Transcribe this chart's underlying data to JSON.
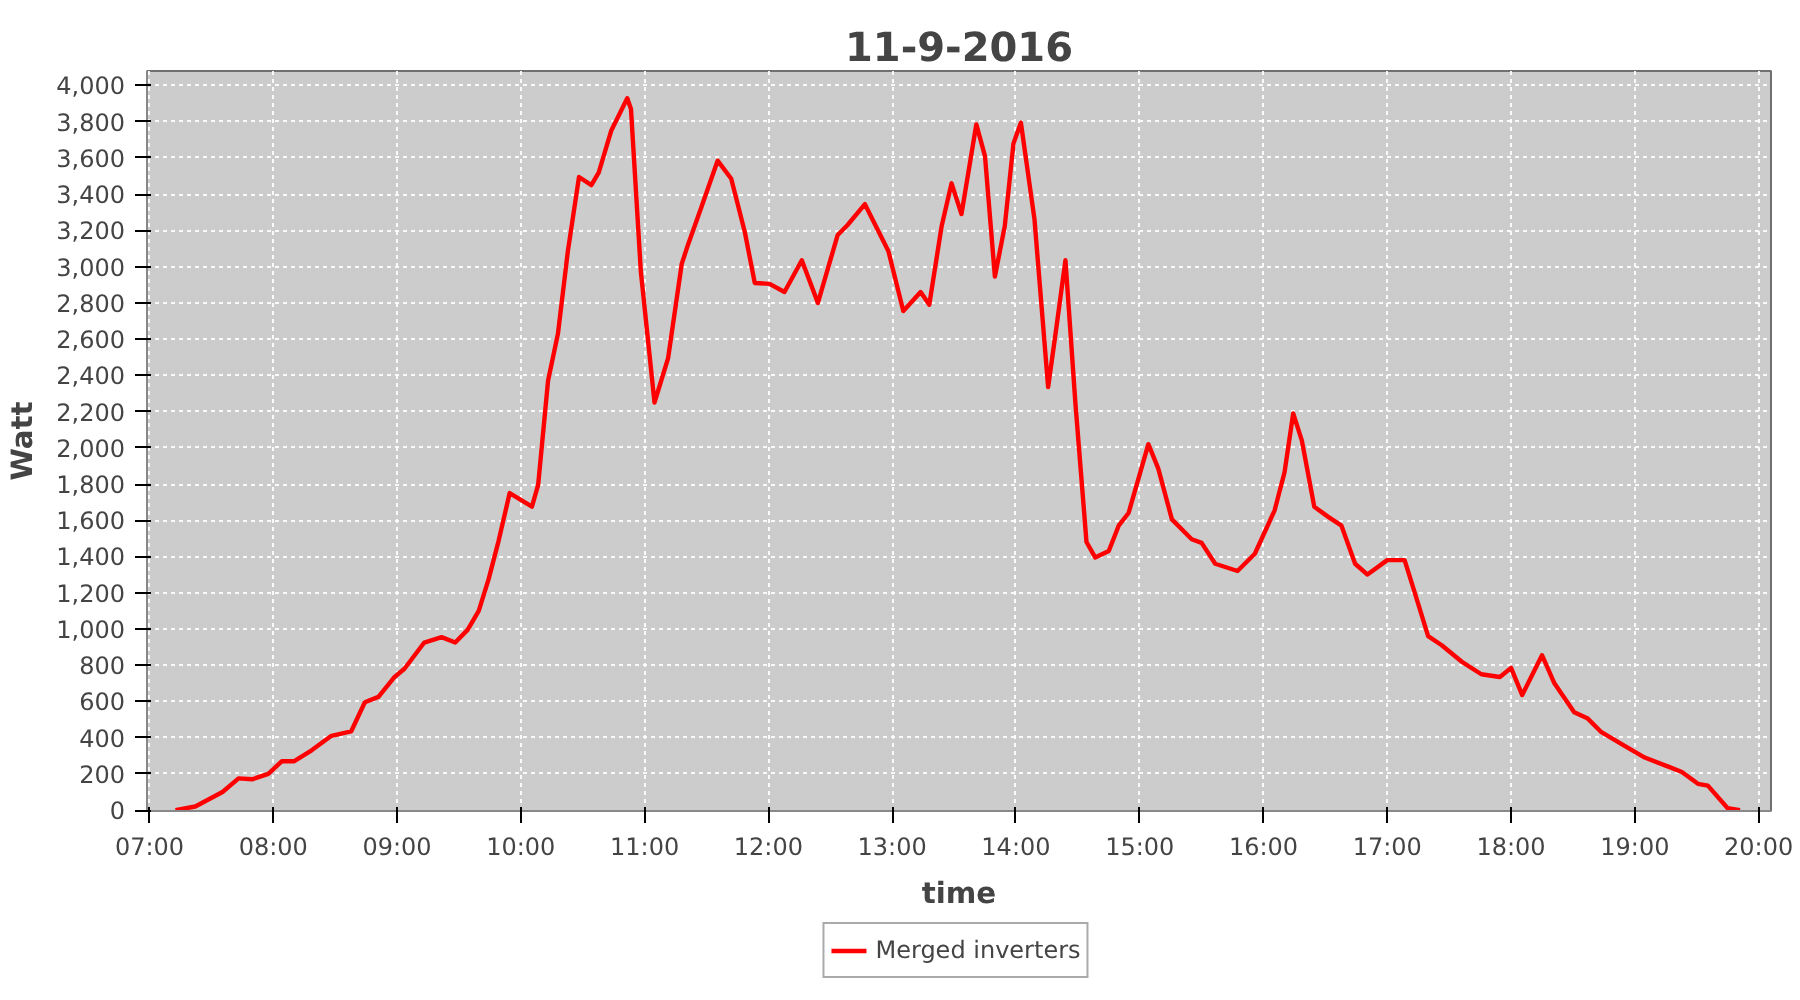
{
  "chart_data": {
    "type": "line",
    "title": "11-9-2016",
    "xlabel": "time",
    "ylabel": "Watt",
    "x": [
      7.21,
      7.37,
      7.59,
      7.72,
      7.83,
      7.96,
      8.07,
      8.17,
      8.31,
      8.47,
      8.63,
      8.74,
      8.85,
      8.98,
      9.06,
      9.22,
      9.36,
      9.47,
      9.57,
      9.66,
      9.74,
      9.82,
      9.91,
      10.09,
      10.14,
      10.22,
      10.3,
      10.38,
      10.47,
      10.57,
      10.63,
      10.73,
      10.86,
      10.89,
      10.97,
      11.08,
      11.19,
      11.3,
      11.35,
      11.46,
      11.59,
      11.7,
      11.81,
      11.89,
      12.01,
      12.13,
      12.27,
      12.4,
      12.56,
      12.64,
      12.78,
      12.97,
      13.09,
      13.23,
      13.3,
      13.4,
      13.48,
      13.56,
      13.68,
      13.75,
      13.83,
      13.91,
      13.98,
      14.04,
      14.15,
      14.26,
      14.32,
      14.4,
      14.48,
      14.57,
      14.64,
      14.75,
      14.83,
      14.91,
      15.07,
      15.15,
      15.26,
      15.42,
      15.5,
      15.61,
      15.79,
      15.93,
      16.09,
      16.17,
      16.24,
      16.31,
      16.41,
      16.52,
      16.63,
      16.74,
      16.84,
      17.0,
      17.14,
      17.22,
      17.33,
      17.44,
      17.6,
      17.76,
      17.91,
      18.0,
      18.09,
      18.25,
      18.35,
      18.51,
      18.62,
      18.73,
      18.89,
      19.08,
      19.27,
      19.38,
      19.51,
      19.59,
      19.75,
      19.85
    ],
    "series": [
      {
        "name": "Merged inverters",
        "color": "#ff0000",
        "values": [
          0,
          20,
          100,
          175,
          170,
          200,
          270,
          270,
          330,
          410,
          435,
          595,
          625,
          735,
          780,
          925,
          955,
          925,
          995,
          1100,
          1275,
          1485,
          1750,
          1675,
          1795,
          2370,
          2630,
          3085,
          3495,
          3450,
          3520,
          3750,
          3930,
          3870,
          2970,
          2250,
          2495,
          3015,
          3120,
          3330,
          3585,
          3485,
          3190,
          2910,
          2905,
          2860,
          3035,
          2800,
          3175,
          3230,
          3345,
          3085,
          2755,
          2860,
          2790,
          3225,
          3460,
          3290,
          3785,
          3610,
          2945,
          3225,
          3680,
          3795,
          3260,
          2335,
          2630,
          3035,
          2250,
          1480,
          1395,
          1430,
          1570,
          1640,
          2020,
          1885,
          1605,
          1495,
          1475,
          1360,
          1320,
          1415,
          1655,
          1865,
          2190,
          2040,
          1675,
          1620,
          1570,
          1360,
          1300,
          1380,
          1380,
          1205,
          960,
          910,
          820,
          750,
          735,
          785,
          635,
          855,
          700,
          540,
          505,
          430,
          365,
          290,
          240,
          210,
          145,
          135,
          10,
          0
        ]
      }
    ],
    "xlim": [
      6.98,
      20.1
    ],
    "ylim": [
      -5,
      4080
    ],
    "xticks": [
      {
        "value": 7,
        "label": "07:00"
      },
      {
        "value": 8,
        "label": "08:00"
      },
      {
        "value": 9,
        "label": "09:00"
      },
      {
        "value": 10,
        "label": "10:00"
      },
      {
        "value": 11,
        "label": "11:00"
      },
      {
        "value": 12,
        "label": "12:00"
      },
      {
        "value": 13,
        "label": "13:00"
      },
      {
        "value": 14,
        "label": "14:00"
      },
      {
        "value": 15,
        "label": "15:00"
      },
      {
        "value": 16,
        "label": "16:00"
      },
      {
        "value": 17,
        "label": "17:00"
      },
      {
        "value": 18,
        "label": "18:00"
      },
      {
        "value": 19,
        "label": "19:00"
      },
      {
        "value": 20,
        "label": "20:00"
      }
    ],
    "yticks": [
      {
        "value": 0,
        "label": "0"
      },
      {
        "value": 200,
        "label": "200"
      },
      {
        "value": 400,
        "label": "400"
      },
      {
        "value": 600,
        "label": "600"
      },
      {
        "value": 800,
        "label": "800"
      },
      {
        "value": 1000,
        "label": "1,000"
      },
      {
        "value": 1200,
        "label": "1,200"
      },
      {
        "value": 1400,
        "label": "1,400"
      },
      {
        "value": 1600,
        "label": "1,600"
      },
      {
        "value": 1800,
        "label": "1,800"
      },
      {
        "value": 2000,
        "label": "2,000"
      },
      {
        "value": 2200,
        "label": "2,200"
      },
      {
        "value": 2400,
        "label": "2,400"
      },
      {
        "value": 2600,
        "label": "2,600"
      },
      {
        "value": 2800,
        "label": "2,800"
      },
      {
        "value": 3000,
        "label": "3,000"
      },
      {
        "value": 3200,
        "label": "3,200"
      },
      {
        "value": 3400,
        "label": "3,400"
      },
      {
        "value": 3600,
        "label": "3,600"
      },
      {
        "value": 3800,
        "label": "3,800"
      },
      {
        "value": 4000,
        "label": "4,000"
      }
    ],
    "grid": true,
    "legend": "bottom",
    "line_style": "solid"
  }
}
